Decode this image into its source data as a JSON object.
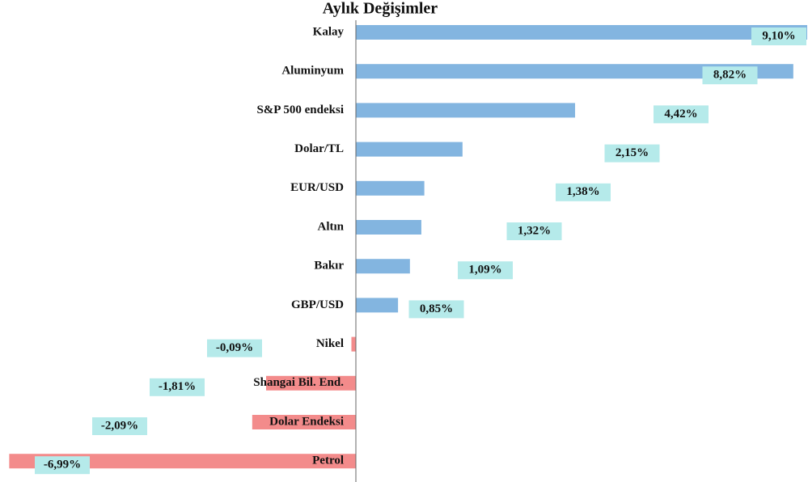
{
  "chart_data": {
    "type": "bar",
    "orientation": "horizontal",
    "title": "Aylık Değişimler",
    "categories": [
      "Kalay",
      "Aluminyum",
      "S&P 500 endeksi",
      "Dolar/TL",
      "EUR/USD",
      "Altın",
      "Bakır",
      "GBP/USD",
      "Nikel",
      "Shangai Bil. End.",
      "Dolar Endeksi",
      "Petrol"
    ],
    "values": [
      9.1,
      8.82,
      4.42,
      2.15,
      1.38,
      1.32,
      1.09,
      0.85,
      -0.09,
      -1.81,
      -2.09,
      -6.99
    ],
    "value_labels": [
      "9,10%",
      "8,82%",
      "4,42%",
      "2,15%",
      "1,38%",
      "1,32%",
      "1,09%",
      "0,85%",
      "-0,09%",
      "-1,81%",
      "-2,09%",
      "-6,99%"
    ],
    "positive_color": "#83b5e0",
    "negative_color": "#f38b8b",
    "label_background": "#b5eaea"
  }
}
